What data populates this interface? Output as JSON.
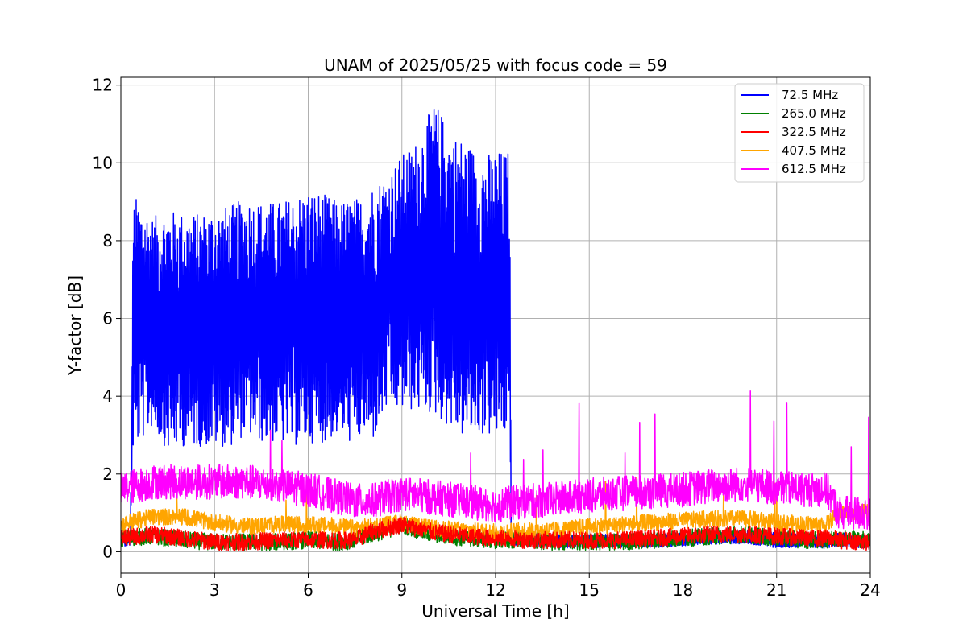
{
  "chart_data": {
    "type": "line",
    "title": "UNAM of 2025/05/25 with focus code = 59",
    "xlabel": "Universal Time [h]",
    "ylabel": "Y-factor [dB]",
    "xlim": [
      0,
      24
    ],
    "ylim": [
      -0.55,
      12.2
    ],
    "xticks": [
      0,
      3,
      6,
      9,
      12,
      15,
      18,
      21,
      24
    ],
    "yticks": [
      0,
      2,
      4,
      6,
      8,
      10,
      12
    ],
    "grid": true,
    "legend_position": "top-right",
    "series": [
      {
        "name": " 72.5 MHz",
        "color": "#0000ff",
        "envelope": true,
        "x": [
          0.1,
          0.3,
          0.4,
          0.5,
          1.0,
          1.5,
          2.0,
          2.5,
          3.0,
          3.5,
          4.0,
          4.5,
          5.0,
          5.5,
          6.0,
          6.5,
          7.0,
          7.5,
          7.8,
          8.0,
          8.5,
          9.0,
          9.5,
          10.0,
          10.2,
          10.5,
          11.0,
          11.5,
          12.0,
          12.4,
          12.45,
          12.5,
          13.0,
          14.0,
          15.0,
          16.0,
          17.0,
          18.0,
          19.0,
          20.0,
          21.0,
          22.0,
          22.6,
          23.0,
          23.5,
          24.0
        ],
        "upper": [
          0.45,
          0.5,
          9.1,
          9.1,
          8.6,
          8.8,
          8.7,
          8.7,
          8.8,
          8.9,
          9.1,
          9.0,
          9.0,
          9.1,
          9.3,
          9.2,
          9.0,
          9.1,
          9.1,
          9.4,
          9.7,
          10.2,
          10.6,
          11.5,
          11.4,
          10.8,
          10.6,
          10.2,
          10.3,
          10.3,
          10.2,
          0.5,
          0.5,
          0.45,
          0.45,
          0.45,
          0.45,
          0.5,
          0.55,
          0.55,
          0.5,
          0.45,
          0.45,
          0.5,
          0.45,
          0.4
        ],
        "lower": [
          0.15,
          0.15,
          2.7,
          2.7,
          3.2,
          2.6,
          2.7,
          2.7,
          2.7,
          2.7,
          3.0,
          2.8,
          2.8,
          2.7,
          2.8,
          2.8,
          3.0,
          2.7,
          3.0,
          2.7,
          3.6,
          3.6,
          3.6,
          3.5,
          3.4,
          3.2,
          2.9,
          3.0,
          2.9,
          3.0,
          3.2,
          0.15,
          0.15,
          0.1,
          0.1,
          0.1,
          0.1,
          0.15,
          0.2,
          0.2,
          0.1,
          0.1,
          0.1,
          0.15,
          0.1,
          0.1
        ]
      },
      {
        "name": "265.0 MHz",
        "color": "#008000",
        "x": [
          0.0,
          1.0,
          2.0,
          3.0,
          4.0,
          5.0,
          6.0,
          7.0,
          7.5,
          8.0,
          8.5,
          9.0,
          9.5,
          10.0,
          11.0,
          12.0,
          13.0,
          14.0,
          15.0,
          16.0,
          17.0,
          18.0,
          19.0,
          20.0,
          21.0,
          22.0,
          22.6,
          23.0,
          24.0
        ],
        "values": [
          0.35,
          0.4,
          0.3,
          0.25,
          0.25,
          0.25,
          0.3,
          0.25,
          0.3,
          0.45,
          0.55,
          0.7,
          0.55,
          0.45,
          0.35,
          0.3,
          0.3,
          0.25,
          0.25,
          0.25,
          0.3,
          0.35,
          0.4,
          0.45,
          0.35,
          0.3,
          0.3,
          0.35,
          0.3
        ]
      },
      {
        "name": "322.5 MHz",
        "color": "#ff0000",
        "x": [
          0.0,
          1.0,
          2.0,
          3.0,
          4.0,
          5.0,
          6.0,
          7.0,
          7.5,
          8.0,
          8.5,
          9.0,
          9.5,
          10.0,
          11.0,
          12.0,
          13.0,
          14.0,
          15.0,
          16.0,
          17.0,
          18.0,
          19.0,
          20.0,
          21.0,
          22.0,
          22.6,
          23.0,
          24.0
        ],
        "values": [
          0.35,
          0.45,
          0.35,
          0.25,
          0.25,
          0.3,
          0.3,
          0.3,
          0.3,
          0.5,
          0.6,
          0.7,
          0.6,
          0.5,
          0.4,
          0.35,
          0.3,
          0.3,
          0.3,
          0.3,
          0.35,
          0.4,
          0.45,
          0.45,
          0.4,
          0.35,
          0.35,
          0.3,
          0.25
        ]
      },
      {
        "name": "407.5 MHz",
        "color": "#ffa500",
        "x": [
          0.0,
          1.0,
          2.0,
          3.0,
          4.0,
          5.0,
          6.0,
          7.0,
          7.5,
          8.0,
          8.5,
          9.0,
          9.5,
          10.0,
          11.0,
          12.0,
          13.0,
          14.0,
          15.0,
          16.0,
          17.0,
          18.0,
          19.0,
          20.0,
          21.0,
          22.0,
          22.6,
          23.0,
          24.0
        ],
        "values": [
          0.7,
          0.9,
          0.9,
          0.75,
          0.65,
          0.7,
          0.7,
          0.65,
          0.6,
          0.65,
          0.7,
          0.75,
          0.65,
          0.6,
          0.55,
          0.5,
          0.55,
          0.55,
          0.65,
          0.7,
          0.75,
          0.8,
          0.85,
          0.85,
          0.75,
          0.7,
          0.7,
          1.0,
          1.0
        ]
      },
      {
        "name": "612.5 MHz",
        "color": "#ff00ff",
        "x": [
          0.0,
          1.0,
          2.0,
          3.0,
          4.0,
          5.0,
          6.0,
          7.0,
          7.5,
          8.0,
          8.5,
          9.0,
          9.5,
          10.0,
          11.0,
          12.0,
          13.0,
          14.0,
          15.0,
          16.0,
          17.0,
          18.0,
          19.0,
          20.0,
          21.0,
          22.0,
          22.6,
          23.0,
          24.0
        ],
        "values": [
          1.6,
          1.8,
          1.8,
          1.8,
          1.8,
          1.7,
          1.6,
          1.4,
          1.3,
          1.3,
          1.4,
          1.5,
          1.45,
          1.4,
          1.3,
          1.2,
          1.3,
          1.35,
          1.45,
          1.5,
          1.55,
          1.6,
          1.7,
          1.75,
          1.65,
          1.6,
          1.6,
          1.0,
          1.0
        ]
      }
    ]
  }
}
